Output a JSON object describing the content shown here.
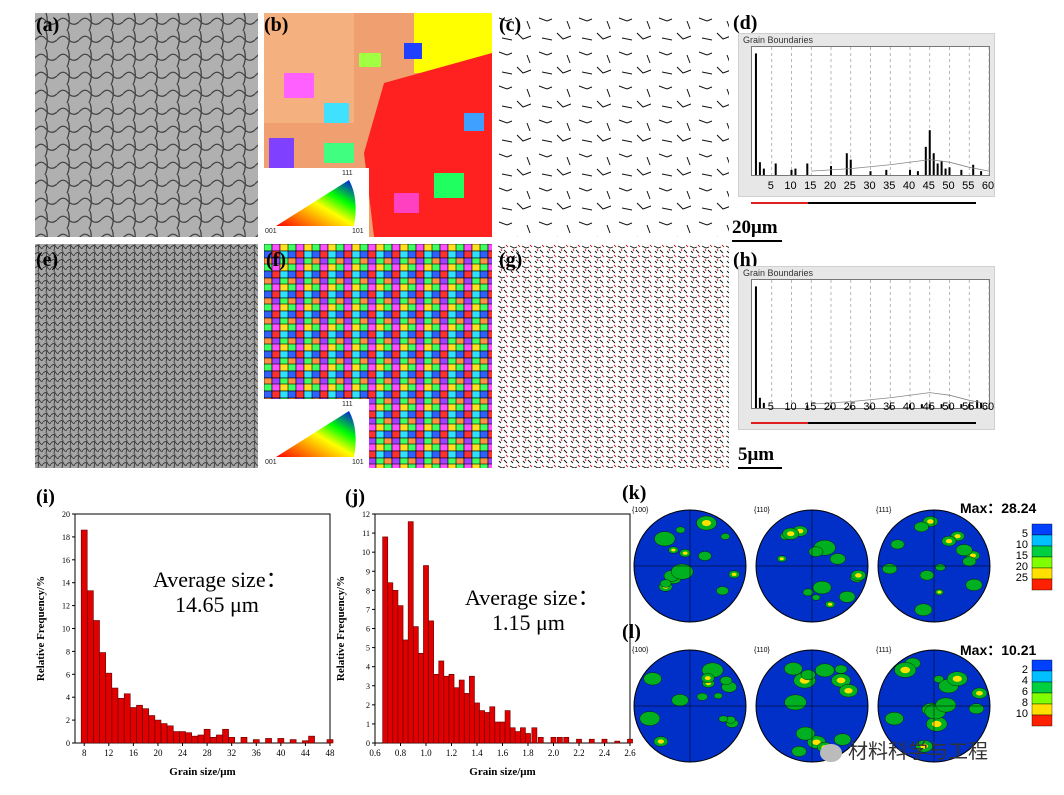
{
  "panels": {
    "a": "(a)",
    "b": "(b)",
    "c": "(c)",
    "d": "(d)",
    "e": "(e)",
    "f": "(f)",
    "g": "(g)",
    "h": "(h)",
    "i": "(i)",
    "j": "(j)",
    "k": "(k)",
    "l": "(l)"
  },
  "scale_bars": {
    "top": "20μm",
    "bottom": "5μm"
  },
  "ipf_key": {
    "top": "111",
    "left": "001",
    "right": "101"
  },
  "colors": {
    "bar_fill": "#e00000",
    "bar_stroke": "#600000",
    "pf_background": "#0030c8",
    "pf_field": "#00b020"
  },
  "grain_boundaries": {
    "title": "Grain Boundaries",
    "ticks": [
      "5",
      "10",
      "15",
      "20",
      "25",
      "30",
      "35",
      "40",
      "45",
      "50",
      "55",
      "60"
    ]
  },
  "hist_i": {
    "avg_label": "Average size：",
    "avg_value": "14.65 μm",
    "ylabel": "Relative Frequency/%",
    "xlabel": "Grain size/μm"
  },
  "hist_j": {
    "avg_label": "Average size：",
    "avg_value": "1.15 μm",
    "ylabel": "Relative Frequency/%",
    "xlabel": "Grain size/μm"
  },
  "pole_figures": {
    "k": {
      "labels": [
        "{100}",
        "{110}",
        "{111}"
      ],
      "max_label": "Max：",
      "max_value": "28.24",
      "legend": [
        "5",
        "10",
        "15",
        "20",
        "25"
      ]
    },
    "l": {
      "labels": [
        "{100}",
        "{110}",
        "{111}"
      ],
      "max_label": "Max：",
      "max_value": "10.21",
      "legend": [
        "2",
        "4",
        "6",
        "8",
        "10"
      ]
    }
  },
  "watermark": "材料科学与工程",
  "chart_data": [
    {
      "type": "bar",
      "panel": "(d)",
      "title": "Grain Boundaries",
      "xlim": [
        0,
        60
      ],
      "x_ticks": [
        5,
        10,
        15,
        20,
        25,
        30,
        35,
        40,
        45,
        50,
        55,
        60
      ],
      "x": [
        1,
        2,
        3,
        6,
        10,
        11,
        14,
        20,
        24,
        25,
        30,
        34,
        40,
        42,
        44,
        45,
        46,
        47,
        48,
        49,
        50,
        53,
        56,
        58
      ],
      "values": [
        0.95,
        0.1,
        0.05,
        0.09,
        0.04,
        0.05,
        0.09,
        0.07,
        0.17,
        0.12,
        0.03,
        0.04,
        0.04,
        0.03,
        0.22,
        0.35,
        0.17,
        0.09,
        0.11,
        0.05,
        0.06,
        0.04,
        0.08,
        0.03
      ],
      "ylim": [
        0,
        1
      ]
    },
    {
      "type": "bar",
      "panel": "(h)",
      "title": "Grain Boundaries",
      "xlim": [
        0,
        60
      ],
      "x_ticks": [
        5,
        10,
        15,
        20,
        25,
        30,
        35,
        40,
        45,
        50,
        55,
        60
      ],
      "x": [
        1,
        2,
        3,
        14,
        20,
        25,
        30,
        35,
        40,
        43,
        45,
        48,
        50,
        53,
        55,
        57,
        58
      ],
      "values": [
        0.95,
        0.08,
        0.04,
        0.02,
        0.02,
        0.02,
        0.02,
        0.02,
        0.03,
        0.03,
        0.03,
        0.03,
        0.03,
        0.03,
        0.03,
        0.06,
        0.04
      ],
      "ylim": [
        0,
        1
      ]
    },
    {
      "type": "bar",
      "panel": "(i)",
      "xlabel": "Grain size/μm",
      "ylabel": "Relative Frequency/%",
      "xlim": [
        6.5,
        48
      ],
      "ylim": [
        0,
        20
      ],
      "x_ticks": [
        8,
        12,
        16,
        20,
        24,
        28,
        32,
        36,
        40,
        44,
        48
      ],
      "y_ticks": [
        0,
        2,
        4,
        6,
        8,
        10,
        12,
        14,
        16,
        18,
        20
      ],
      "x": [
        8,
        9,
        10,
        11,
        12,
        13,
        14,
        15,
        16,
        17,
        18,
        19,
        20,
        21,
        22,
        23,
        24,
        25,
        26,
        27,
        28,
        29,
        30,
        31,
        32,
        34,
        36,
        38,
        40,
        42,
        44,
        45,
        48
      ],
      "values": [
        18.6,
        13.3,
        10.7,
        7.9,
        6.1,
        4.8,
        3.9,
        4.3,
        3.1,
        3.3,
        3.0,
        2.4,
        2.0,
        1.7,
        1.5,
        1.0,
        1.0,
        0.9,
        0.6,
        0.7,
        1.2,
        0.5,
        0.7,
        1.2,
        0.5,
        0.5,
        0.3,
        0.4,
        0.4,
        0.3,
        0.2,
        0.6,
        0.3
      ]
    },
    {
      "type": "bar",
      "panel": "(j)",
      "xlabel": "Grain size/μm",
      "ylabel": "Relative Frequency/%",
      "xlim": [
        0.6,
        2.6
      ],
      "ylim": [
        0,
        12
      ],
      "x_ticks": [
        0.6,
        0.8,
        1.0,
        1.2,
        1.4,
        1.6,
        1.8,
        2.0,
        2.2,
        2.4,
        2.6
      ],
      "y_ticks": [
        0,
        1,
        2,
        3,
        4,
        5,
        6,
        7,
        8,
        9,
        10,
        11,
        12
      ],
      "x": [
        0.68,
        0.72,
        0.76,
        0.8,
        0.84,
        0.88,
        0.92,
        0.96,
        1.0,
        1.04,
        1.08,
        1.12,
        1.16,
        1.2,
        1.24,
        1.28,
        1.32,
        1.36,
        1.4,
        1.44,
        1.48,
        1.52,
        1.56,
        1.6,
        1.64,
        1.68,
        1.72,
        1.76,
        1.8,
        1.85,
        1.9,
        2.0,
        2.05,
        2.1,
        2.2,
        2.3,
        2.4,
        2.5,
        2.6
      ],
      "values": [
        10.8,
        8.4,
        8.0,
        7.2,
        5.4,
        11.6,
        6.1,
        4.7,
        9.3,
        6.4,
        3.6,
        4.3,
        3.5,
        3.6,
        2.9,
        3.3,
        2.6,
        3.5,
        2.1,
        1.7,
        1.6,
        1.9,
        1.1,
        1.1,
        1.7,
        0.8,
        0.6,
        0.8,
        0.5,
        0.8,
        0.3,
        0.3,
        0.3,
        0.3,
        0.2,
        0.2,
        0.2,
        0.1,
        0.2
      ]
    }
  ]
}
